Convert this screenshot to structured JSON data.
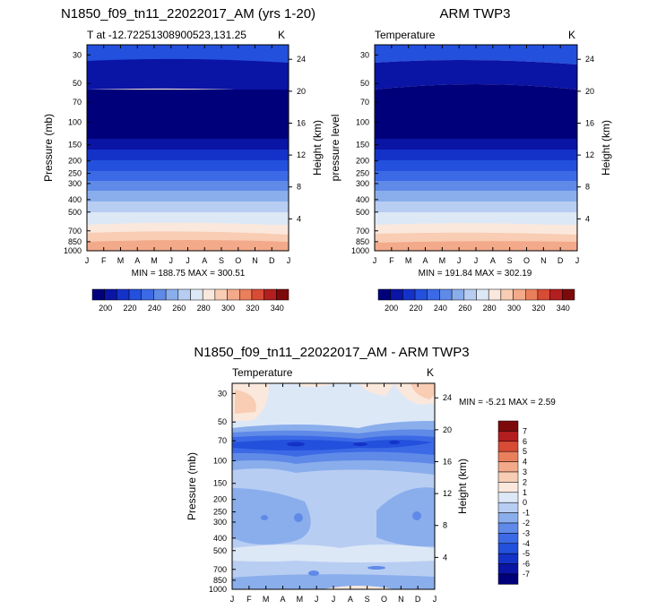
{
  "panels": [
    {
      "title": "N1850_f09_tn11_22022017_AM (yrs 1-20)",
      "subtitle": "T at -12.72251308900523,131.25",
      "unit": "K",
      "ylabel": "Pressure (mb)",
      "ylabel_right": "Height (km)",
      "minmax": "MIN = 188.75 MAX = 300.51"
    },
    {
      "title": "ARM TWP3",
      "subtitle": "Temperature",
      "unit": "K",
      "ylabel": "pressure level",
      "ylabel_right": "Height (km)",
      "minmax": "MIN = 191.84 MAX = 302.19"
    },
    {
      "title": "N1850_f09_tn11_22022017_AM - ARM TWP3",
      "subtitle": "Temperature",
      "unit": "K",
      "ylabel": "Pressure (mb)",
      "ylabel_right": "Height (km)",
      "minmax": "MIN = -5.21 MAX =   2.59"
    }
  ],
  "chart_data": [
    {
      "type": "heatmap",
      "title": "N1850_f09_tn11_22022017_AM (yrs 1-20)",
      "subtitle": "T at -12.72251308900523,131.25",
      "x_tick_labels": [
        "J",
        "F",
        "M",
        "A",
        "M",
        "J",
        "J",
        "A",
        "S",
        "O",
        "N",
        "D",
        "J"
      ],
      "y_pressure_ticks": [
        30,
        50,
        70,
        100,
        150,
        200,
        250,
        300,
        400,
        500,
        700,
        850,
        1000
      ],
      "y_height_ticks_km": [
        4,
        8,
        12,
        16,
        20,
        24
      ],
      "ylim_mb": [
        1000,
        25
      ],
      "contour_levels": [
        200,
        210,
        220,
        230,
        240,
        250,
        260,
        270,
        280,
        290,
        300,
        310,
        320,
        330,
        340
      ],
      "colorbar_labels": [
        "200",
        "220",
        "240",
        "260",
        "280",
        "300",
        "320",
        "340"
      ],
      "min": 188.75,
      "max": 300.51
    },
    {
      "type": "heatmap",
      "title": "ARM TWP3",
      "subtitle": "Temperature",
      "x_tick_labels": [
        "J",
        "F",
        "M",
        "A",
        "M",
        "J",
        "J",
        "A",
        "S",
        "O",
        "N",
        "D",
        "J"
      ],
      "y_pressure_ticks": [
        30,
        50,
        70,
        100,
        150,
        200,
        250,
        300,
        400,
        500,
        700,
        850,
        1000
      ],
      "y_height_ticks_km": [
        4,
        8,
        12,
        16,
        20,
        24
      ],
      "ylim_mb": [
        1000,
        25
      ],
      "contour_levels": [
        200,
        210,
        220,
        230,
        240,
        250,
        260,
        270,
        280,
        290,
        300,
        310,
        320,
        330,
        340
      ],
      "colorbar_labels": [
        "200",
        "220",
        "240",
        "260",
        "280",
        "300",
        "320",
        "340"
      ],
      "min": 191.84,
      "max": 302.19
    },
    {
      "type": "heatmap",
      "title": "N1850_f09_tn11_22022017_AM - ARM TWP3",
      "subtitle": "Temperature",
      "x_tick_labels": [
        "J",
        "F",
        "M",
        "A",
        "M",
        "J",
        "J",
        "A",
        "S",
        "O",
        "N",
        "D",
        "J"
      ],
      "y_pressure_ticks": [
        30,
        50,
        70,
        100,
        150,
        200,
        250,
        300,
        400,
        500,
        700,
        850,
        1000
      ],
      "y_height_ticks_km": [
        4,
        8,
        12,
        16,
        20,
        24
      ],
      "ylim_mb": [
        1000,
        25
      ],
      "contour_levels": [
        -7,
        -6,
        -5,
        -4,
        -3,
        -2,
        -1,
        0,
        1,
        2,
        3,
        4,
        5,
        6,
        7
      ],
      "colorbar_labels": [
        "7",
        "6",
        "5",
        "4",
        "3",
        "2",
        "1",
        "0",
        "-1",
        "-2",
        "-3",
        "-4",
        "-5",
        "-6",
        "-7"
      ],
      "min": -5.21,
      "max": 2.59
    }
  ],
  "palette": [
    "#00007a",
    "#0a14a5",
    "#1432c8",
    "#2350dc",
    "#3c6ae6",
    "#5f8ae8",
    "#8aaeec",
    "#b8cdf2",
    "#dde8f7",
    "#fbe8dc",
    "#f8cdb4",
    "#f3aa8a",
    "#ea7f5c",
    "#d84b35",
    "#b31e1e",
    "#7d0a0a"
  ]
}
